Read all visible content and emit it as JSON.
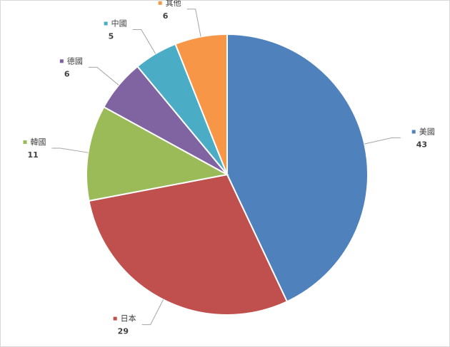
{
  "chart_data": {
    "type": "pie",
    "categories": [
      "美國",
      "日本",
      "韓國",
      "德國",
      "中國",
      "其他"
    ],
    "values": [
      43,
      29,
      11,
      6,
      5,
      6
    ],
    "colors": [
      "#4f81bd",
      "#c0504d",
      "#9bbb59",
      "#8064a2",
      "#4bacc6",
      "#f79646"
    ]
  }
}
